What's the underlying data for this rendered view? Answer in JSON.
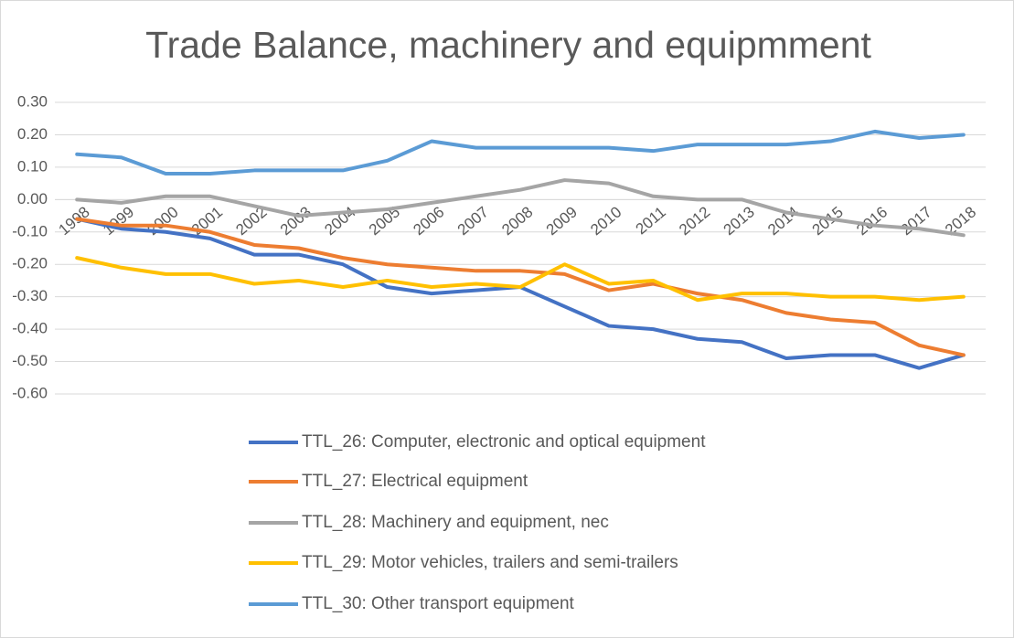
{
  "chart_data": {
    "type": "line",
    "title": "Trade Balance, machinery and equipmment",
    "categories": [
      "1998",
      "1999",
      "2000",
      "2001",
      "2002",
      "2003",
      "2004",
      "2005",
      "2006",
      "2007",
      "2008",
      "2009",
      "2010",
      "2011",
      "2012",
      "2013",
      "2014",
      "2015",
      "2016",
      "2017",
      "2018"
    ],
    "series": [
      {
        "name": "TTL_26: Computer, electronic and optical equipment",
        "color": "#4472c4",
        "values": [
          -0.06,
          -0.09,
          -0.1,
          -0.12,
          -0.17,
          -0.17,
          -0.2,
          -0.27,
          -0.29,
          -0.28,
          -0.27,
          -0.33,
          -0.39,
          -0.4,
          -0.43,
          -0.44,
          -0.49,
          -0.48,
          -0.48,
          -0.52,
          -0.48
        ]
      },
      {
        "name": "TTL_27: Electrical equipment",
        "color": "#ed7d31",
        "values": [
          -0.06,
          -0.08,
          -0.08,
          -0.1,
          -0.14,
          -0.15,
          -0.18,
          -0.2,
          -0.21,
          -0.22,
          -0.22,
          -0.23,
          -0.28,
          -0.26,
          -0.29,
          -0.31,
          -0.35,
          -0.37,
          -0.38,
          -0.45,
          -0.48
        ]
      },
      {
        "name": "TTL_28: Machinery and equipment, nec",
        "color": "#a5a5a5",
        "values": [
          0.0,
          -0.01,
          0.01,
          0.01,
          -0.02,
          -0.05,
          -0.04,
          -0.03,
          -0.01,
          0.01,
          0.03,
          0.06,
          0.05,
          0.01,
          0.0,
          0.0,
          -0.04,
          -0.06,
          -0.08,
          -0.09,
          -0.11
        ]
      },
      {
        "name": "TTL_29: Motor vehicles, trailers and semi-trailers",
        "color": "#ffc000",
        "values": [
          -0.18,
          -0.21,
          -0.23,
          -0.23,
          -0.26,
          -0.25,
          -0.27,
          -0.25,
          -0.27,
          -0.26,
          -0.27,
          -0.2,
          -0.26,
          -0.25,
          -0.31,
          -0.29,
          -0.29,
          -0.3,
          -0.3,
          -0.31,
          -0.3
        ]
      },
      {
        "name": "TTL_30: Other transport equipment",
        "color": "#5b9bd5",
        "values": [
          0.14,
          0.13,
          0.08,
          0.08,
          0.09,
          0.09,
          0.09,
          0.12,
          0.18,
          0.16,
          0.16,
          0.16,
          0.16,
          0.15,
          0.17,
          0.17,
          0.17,
          0.18,
          0.21,
          0.19,
          0.2
        ]
      }
    ],
    "ylim": [
      -0.6,
      0.3
    ],
    "yticks": [
      {
        "value": 0.3,
        "label": "0.30"
      },
      {
        "value": 0.2,
        "label": "0.20"
      },
      {
        "value": 0.1,
        "label": "0.10"
      },
      {
        "value": 0,
        "label": "0.00"
      },
      {
        "value": -0.1,
        "label": "-0.10"
      },
      {
        "value": -0.2,
        "label": "-0.20"
      },
      {
        "value": -0.3,
        "label": "-0.30"
      },
      {
        "value": -0.4,
        "label": "-0.40"
      },
      {
        "value": -0.5,
        "label": "-0.50"
      },
      {
        "value": -0.6,
        "label": "-0.60"
      }
    ],
    "grid": true
  }
}
